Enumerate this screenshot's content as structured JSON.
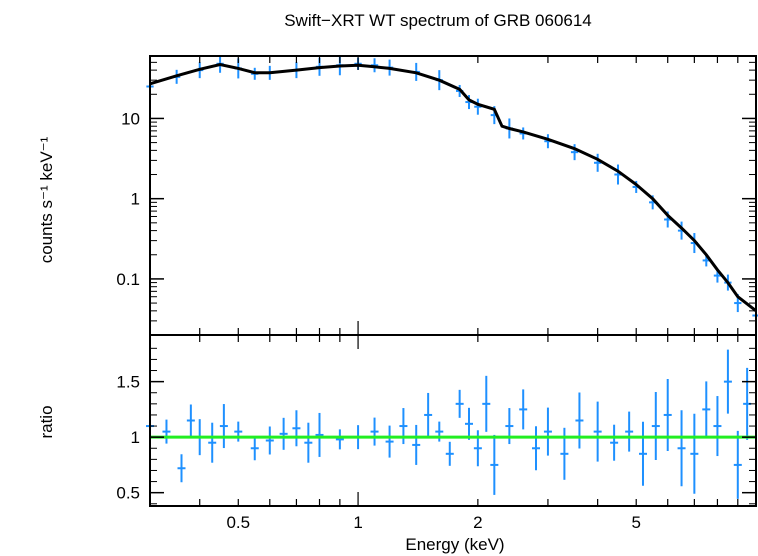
{
  "chart_data": [
    {
      "type": "scatter",
      "title": "Swift−XRT WT spectrum of GRB 060614",
      "xlabel": "",
      "ylabel": "counts s⁻¹ keV⁻¹",
      "xscale": "log",
      "yscale": "log",
      "xlim": [
        0.3,
        10
      ],
      "ylim": [
        0.02,
        60
      ],
      "yticks": [
        0.1,
        1,
        10
      ],
      "ytick_labels": [
        "0.1",
        "1",
        "10"
      ],
      "series": [
        {
          "kind": "data",
          "color": "#1e90ff",
          "x": [
            0.3,
            0.35,
            0.4,
            0.45,
            0.5,
            0.55,
            0.6,
            0.7,
            0.8,
            0.9,
            1.0,
            1.1,
            1.2,
            1.4,
            1.6,
            1.8,
            1.9,
            2.0,
            2.2,
            2.4,
            2.6,
            3.0,
            3.5,
            4.0,
            4.5,
            5.0,
            5.5,
            6.0,
            6.5,
            7.0,
            7.5,
            8.0,
            8.5,
            9.0,
            10.0
          ],
          "y": [
            25,
            33,
            40,
            48,
            42,
            36,
            37,
            40,
            44,
            46,
            48,
            46,
            43,
            38,
            30,
            22,
            16,
            14,
            11,
            7.5,
            6.5,
            5.2,
            3.8,
            2.8,
            2.0,
            1.4,
            0.9,
            0.55,
            0.4,
            0.28,
            0.17,
            0.11,
            0.09,
            0.05,
            0.035
          ]
        },
        {
          "kind": "model",
          "color": "#000000",
          "x": [
            0.3,
            0.35,
            0.4,
            0.45,
            0.5,
            0.55,
            0.6,
            0.7,
            0.8,
            0.9,
            1.0,
            1.1,
            1.2,
            1.4,
            1.6,
            1.8,
            1.9,
            2.0,
            2.2,
            2.3,
            2.4,
            2.6,
            3.0,
            3.5,
            4.0,
            4.5,
            5.0,
            5.5,
            6.0,
            6.5,
            7.0,
            7.5,
            8.0,
            8.5,
            9.0,
            10.0
          ],
          "y": [
            27,
            34,
            41,
            47,
            42,
            37,
            37,
            40,
            43,
            45,
            46,
            44,
            42,
            37,
            30,
            23,
            17,
            15,
            13,
            8,
            7.5,
            6.8,
            5.5,
            4.2,
            3.1,
            2.2,
            1.5,
            1.0,
            0.62,
            0.43,
            0.3,
            0.2,
            0.13,
            0.09,
            0.06,
            0.04
          ]
        }
      ]
    },
    {
      "type": "scatter",
      "title": "",
      "xlabel": "Energy (keV)",
      "ylabel": "ratio",
      "xscale": "log",
      "yscale": "linear",
      "xlim": [
        0.3,
        10
      ],
      "ylim": [
        0.38,
        1.92
      ],
      "xticks": [
        0.5,
        1,
        2,
        5
      ],
      "xtick_labels": [
        "0.5",
        "1",
        "2",
        "5"
      ],
      "yticks": [
        0.5,
        1,
        1.5
      ],
      "ytick_labels": [
        "0.5",
        "1",
        "1.5"
      ],
      "reference_line": {
        "y": 1,
        "color": "#22ee22"
      },
      "series": [
        {
          "kind": "ratio",
          "color": "#1e90ff",
          "x": [
            0.3,
            0.33,
            0.36,
            0.38,
            0.4,
            0.43,
            0.46,
            0.5,
            0.55,
            0.6,
            0.65,
            0.7,
            0.75,
            0.8,
            0.9,
            1.0,
            1.1,
            1.2,
            1.3,
            1.4,
            1.5,
            1.6,
            1.7,
            1.8,
            1.9,
            2.0,
            2.1,
            2.2,
            2.4,
            2.6,
            2.8,
            3.0,
            3.3,
            3.6,
            4.0,
            4.4,
            4.8,
            5.2,
            5.6,
            6.0,
            6.5,
            7.0,
            7.5,
            8.0,
            8.5,
            9.0,
            9.5
          ],
          "y": [
            1.1,
            1.05,
            0.72,
            1.15,
            1.0,
            0.95,
            1.1,
            1.05,
            0.9,
            0.97,
            1.03,
            1.08,
            0.95,
            1.02,
            0.98,
            1.0,
            1.05,
            0.96,
            1.1,
            0.93,
            1.2,
            1.05,
            0.85,
            1.3,
            1.12,
            0.9,
            1.3,
            0.75,
            1.1,
            1.25,
            0.9,
            1.05,
            0.85,
            1.15,
            1.05,
            0.95,
            1.05,
            0.85,
            1.1,
            1.2,
            0.9,
            0.85,
            1.25,
            1.1,
            1.5,
            0.75,
            1.3
          ]
        }
      ]
    }
  ]
}
